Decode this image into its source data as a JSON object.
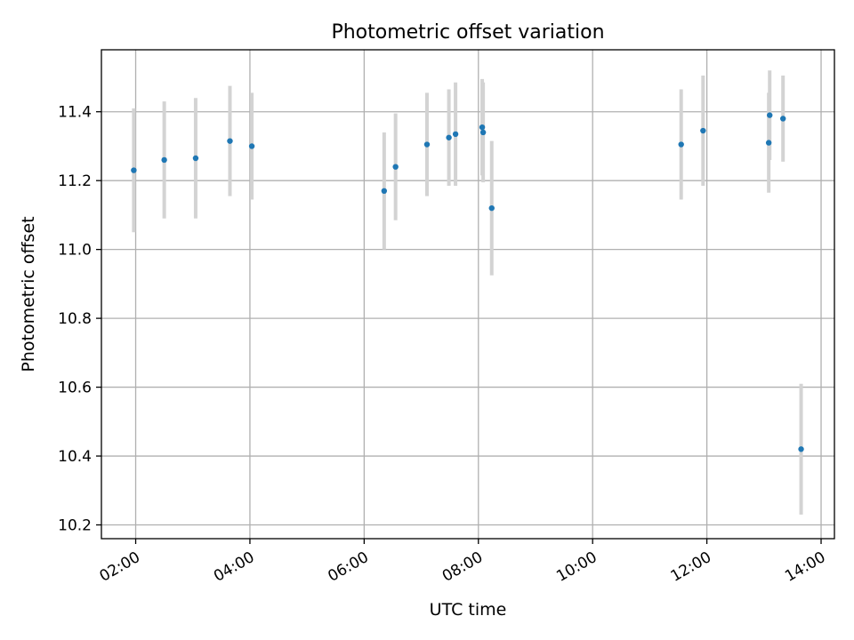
{
  "chart_data": {
    "type": "scatter",
    "title": "Photometric offset variation",
    "xlabel": "UTC time",
    "ylabel": "Photometric offset",
    "x_unit": "time of day (HH:MM, UTC)",
    "xlim": [
      "01:24",
      "14:14"
    ],
    "ylim": [
      10.16,
      11.58
    ],
    "x_ticks": [
      "02:00",
      "04:00",
      "06:00",
      "08:00",
      "10:00",
      "12:00",
      "14:00"
    ],
    "y_ticks": [
      10.2,
      10.4,
      10.6,
      10.8,
      11.0,
      11.2,
      11.4
    ],
    "y_tick_labels": [
      "10.2",
      "10.4",
      "10.6",
      "10.8",
      "11.0",
      "11.2",
      "11.4"
    ],
    "grid": true,
    "marker_color": "#1f77b4",
    "errorbar_color": "#d3d3d3",
    "series": [
      {
        "x": [
          "01:58",
          "02:30",
          "03:03",
          "03:39",
          "04:02",
          "06:21",
          "06:33",
          "07:06",
          "07:29",
          "07:36",
          "08:04",
          "08:05",
          "08:14",
          "11:33",
          "11:56",
          "13:05",
          "13:06",
          "13:20",
          "13:39"
        ],
        "y": [
          11.23,
          11.26,
          11.265,
          11.315,
          11.3,
          11.17,
          11.24,
          11.305,
          11.325,
          11.335,
          11.355,
          11.34,
          11.12,
          11.305,
          11.345,
          11.31,
          11.39,
          11.38,
          10.42
        ],
        "yerr": [
          0.18,
          0.17,
          0.175,
          0.16,
          0.155,
          0.17,
          0.155,
          0.15,
          0.14,
          0.15,
          0.14,
          0.145,
          0.195,
          0.16,
          0.16,
          0.145,
          0.13,
          0.125,
          0.19
        ]
      }
    ]
  }
}
